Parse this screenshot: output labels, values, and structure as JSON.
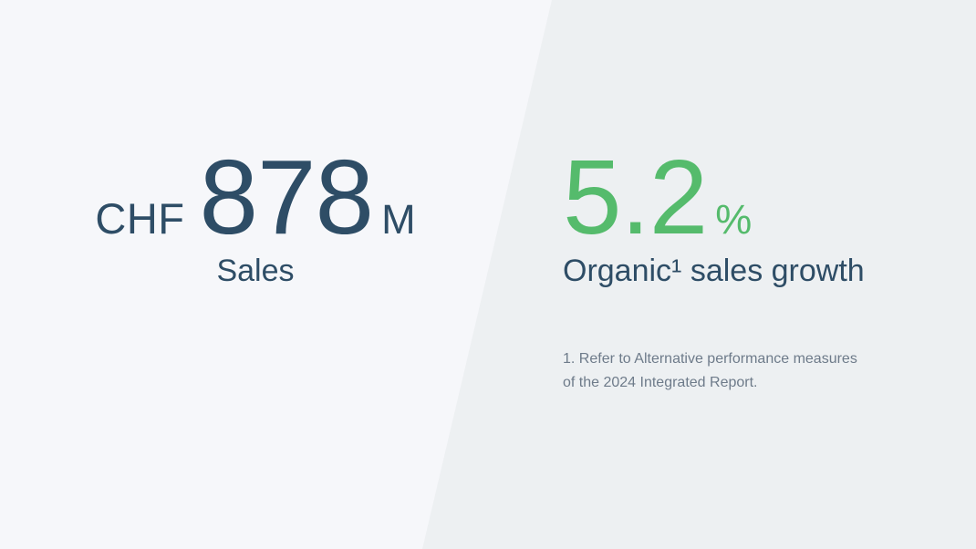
{
  "slide": {
    "left_panel": {
      "currency": "CHF",
      "value": "878",
      "unit": "M",
      "caption": "Sales"
    },
    "right_panel": {
      "value": "5.2",
      "unit": "%",
      "caption": "Organic¹ sales growth",
      "footnote": [
        "1. Refer to Alternative performance measures",
        "of the 2024 Integrated Report."
      ]
    },
    "colors": {
      "navy": "#2e4d66",
      "green": "#55bb6c",
      "left_background": "#f6f7fa",
      "right_background": "#edf0f2",
      "footnote_gray": "#6e7b8a"
    }
  }
}
